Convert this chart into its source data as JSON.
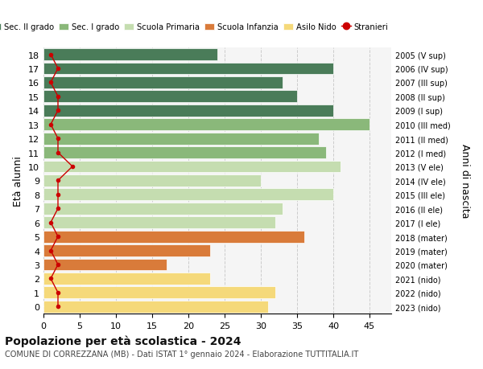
{
  "ages": [
    18,
    17,
    16,
    15,
    14,
    13,
    12,
    11,
    10,
    9,
    8,
    7,
    6,
    5,
    4,
    3,
    2,
    1,
    0
  ],
  "right_labels": [
    "2005 (V sup)",
    "2006 (IV sup)",
    "2007 (III sup)",
    "2008 (II sup)",
    "2009 (I sup)",
    "2010 (III med)",
    "2011 (II med)",
    "2012 (I med)",
    "2013 (V ele)",
    "2014 (IV ele)",
    "2015 (III ele)",
    "2016 (II ele)",
    "2017 (I ele)",
    "2018 (mater)",
    "2019 (mater)",
    "2020 (mater)",
    "2021 (nido)",
    "2022 (nido)",
    "2023 (nido)"
  ],
  "bar_values": [
    24,
    40,
    33,
    35,
    40,
    45,
    38,
    39,
    41,
    30,
    40,
    33,
    32,
    36,
    23,
    17,
    23,
    32,
    31
  ],
  "bar_colors": [
    "#4a7c59",
    "#4a7c59",
    "#4a7c59",
    "#4a7c59",
    "#4a7c59",
    "#8ab87a",
    "#8ab87a",
    "#8ab87a",
    "#c5ddb0",
    "#c5ddb0",
    "#c5ddb0",
    "#c5ddb0",
    "#c5ddb0",
    "#d97b3a",
    "#d97b3a",
    "#d97b3a",
    "#f5d97a",
    "#f5d97a",
    "#f5d97a"
  ],
  "stranieri_values": [
    1,
    2,
    1,
    2,
    2,
    1,
    2,
    2,
    4,
    2,
    2,
    2,
    1,
    2,
    1,
    2,
    1,
    2,
    2
  ],
  "legend_labels": [
    "Sec. II grado",
    "Sec. I grado",
    "Scuola Primaria",
    "Scuola Infanzia",
    "Asilo Nido",
    "Stranieri"
  ],
  "legend_colors": [
    "#4a7c59",
    "#8ab87a",
    "#c5ddb0",
    "#d97b3a",
    "#f5d97a",
    "#cc0000"
  ],
  "title": "Popolazione per età scolastica - 2024",
  "subtitle": "COMUNE DI CORREZZANA (MB) - Dati ISTAT 1° gennaio 2024 - Elaborazione TUTTITALIA.IT",
  "ylabel": "Età alunni",
  "ylabel_right": "Anni di nascita",
  "xlabel_values": [
    0,
    5,
    10,
    15,
    20,
    25,
    30,
    35,
    40,
    45
  ],
  "xlim": [
    0,
    48
  ],
  "ylim": [
    -0.5,
    18.5
  ],
  "bg_color": "#ffffff",
  "plot_bg": "#f5f5f5"
}
